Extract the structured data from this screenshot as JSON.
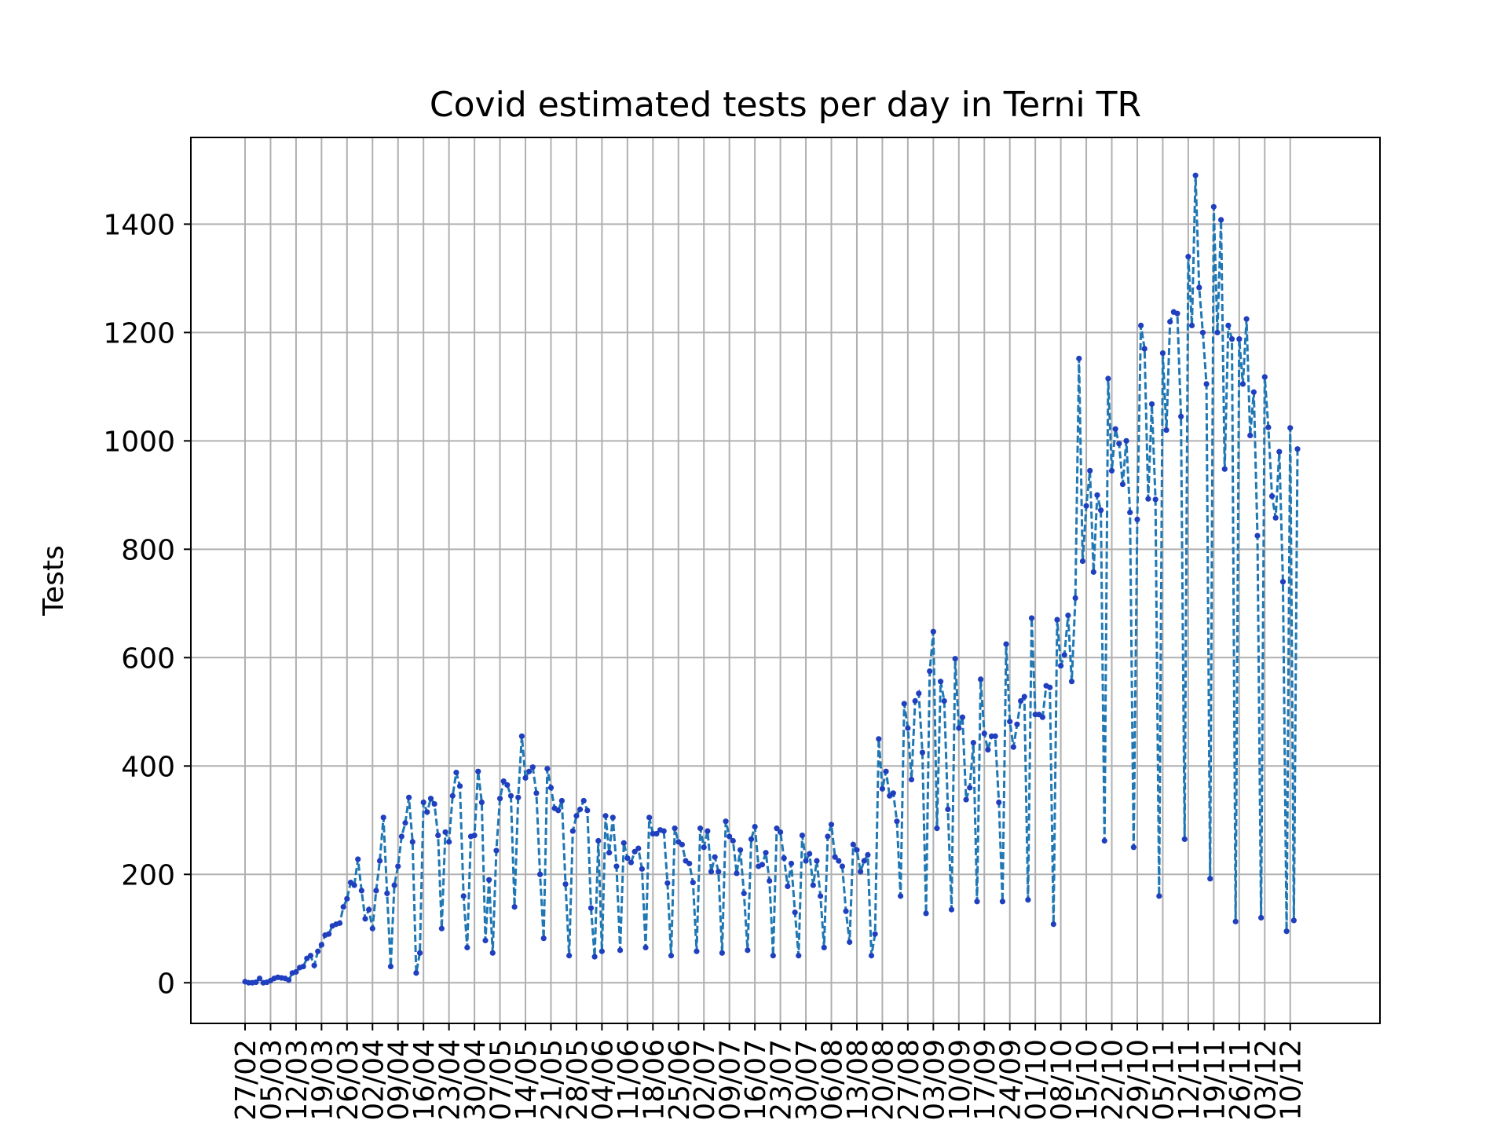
{
  "chart_data": {
    "type": "line",
    "title": "Covid estimated tests per day in Terni TR",
    "xlabel": "",
    "ylabel": "Tests",
    "grid": true,
    "ylim": [
      -75,
      1560
    ],
    "yticks": [
      0,
      200,
      400,
      600,
      800,
      1000,
      1200,
      1400
    ],
    "x_tick_labels": [
      "27/02",
      "05/03",
      "12/03",
      "19/03",
      "26/03",
      "02/04",
      "09/04",
      "16/04",
      "23/04",
      "30/04",
      "07/05",
      "14/05",
      "21/05",
      "28/05",
      "04/06",
      "11/06",
      "18/06",
      "25/06",
      "02/07",
      "09/07",
      "16/07",
      "23/07",
      "30/07",
      "06/08",
      "13/08",
      "20/08",
      "27/08",
      "03/09",
      "10/09",
      "17/09",
      "24/09",
      "01/10",
      "08/10",
      "15/10",
      "22/10",
      "29/10",
      "05/11",
      "12/11",
      "19/11",
      "26/11",
      "03/12",
      "10/12"
    ],
    "series": [
      {
        "color": "#1f77b4",
        "marker_color": "#1f3fbf",
        "line_style": "dashed",
        "values": [
          2,
          0,
          0,
          1,
          8,
          0,
          1,
          4,
          8,
          10,
          9,
          8,
          5,
          18,
          20,
          28,
          30,
          45,
          50,
          32,
          58,
          70,
          88,
          90,
          105,
          108,
          110,
          140,
          155,
          185,
          180,
          228,
          170,
          118,
          135,
          100,
          170,
          225,
          305,
          165,
          30,
          180,
          215,
          270,
          295,
          342,
          260,
          18,
          55,
          333,
          315,
          340,
          330,
          272,
          100,
          278,
          260,
          345,
          388,
          363,
          160,
          65,
          270,
          272,
          390,
          333,
          78,
          190,
          55,
          244,
          340,
          372,
          365,
          345,
          140,
          342,
          455,
          378,
          390,
          398,
          350,
          200,
          82,
          395,
          360,
          322,
          318,
          336,
          182,
          50,
          280,
          308,
          320,
          336,
          318,
          138,
          48,
          262,
          58,
          308,
          240,
          305,
          215,
          60,
          258,
          230,
          222,
          242,
          248,
          210,
          65,
          305,
          275,
          275,
          282,
          280,
          184,
          50,
          285,
          260,
          255,
          225,
          220,
          185,
          58,
          285,
          250,
          280,
          205,
          232,
          205,
          55,
          298,
          270,
          262,
          202,
          245,
          165,
          60,
          265,
          288,
          215,
          218,
          240,
          188,
          50,
          285,
          278,
          230,
          178,
          220,
          130,
          50,
          272,
          225,
          238,
          180,
          225,
          160,
          65,
          270,
          292,
          232,
          225,
          215,
          132,
          75,
          255,
          245,
          205,
          225,
          236,
          50,
          90,
          450,
          358,
          390,
          345,
          350,
          298,
          160,
          515,
          470,
          375,
          520,
          534,
          425,
          128,
          575,
          648,
          285,
          556,
          520,
          320,
          135,
          598,
          470,
          490,
          338,
          360,
          443,
          150,
          560,
          460,
          430,
          455,
          455,
          333,
          150,
          625,
          482,
          435,
          477,
          520,
          528,
          153,
          673,
          495,
          495,
          490,
          548,
          545,
          108,
          670,
          585,
          605,
          678,
          556,
          710,
          1152,
          778,
          880,
          945,
          758,
          900,
          872,
          262,
          1115,
          945,
          1022,
          995,
          920,
          1000,
          868,
          250,
          855,
          1213,
          1170,
          893,
          1068,
          892,
          160,
          1162,
          1020,
          1220,
          1238,
          1235,
          1045,
          265,
          1340,
          1213,
          1490,
          1283,
          1200,
          1105,
          192,
          1432,
          1200,
          1408,
          948,
          1213,
          1188,
          113,
          1188,
          1105,
          1225,
          1010,
          1090,
          825,
          120,
          1118,
          1025,
          898,
          858,
          980,
          740,
          95,
          1024,
          115,
          985
        ]
      }
    ]
  }
}
